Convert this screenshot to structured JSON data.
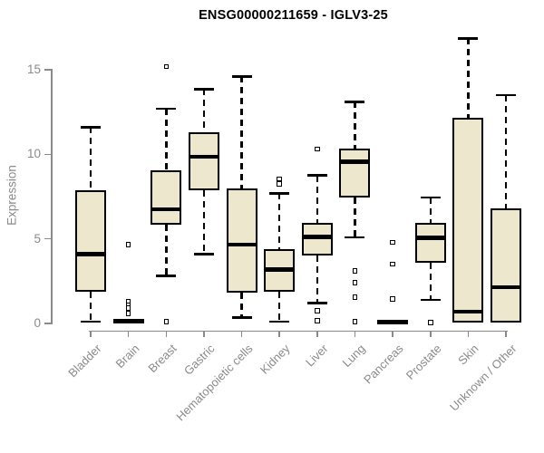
{
  "title": "ENSG00000211659 - IGLV3-25",
  "chart_data": {
    "type": "boxplot",
    "title": "ENSG00000211659 - IGLV3-25",
    "xlabel": "",
    "ylabel": "Expression",
    "ylim": [
      0,
      15
    ],
    "yticks": [
      0,
      5,
      10,
      15
    ],
    "grid": "off",
    "legend": "none",
    "categories": [
      "Bladder",
      "Brain",
      "Breast",
      "Gastric",
      "Hematopoietic cells",
      "Kidney",
      "Liver",
      "Lung",
      "Pancreas",
      "Prostate",
      "Skin",
      "Unknown / Other"
    ],
    "boxes": [
      {
        "label": "Bladder",
        "whisker_low": 0.1,
        "q1": 1.9,
        "median": 4.1,
        "q3": 7.9,
        "whisker_high": 11.6,
        "outliers": []
      },
      {
        "label": "Brain",
        "whisker_low": 0.0,
        "q1": 0.0,
        "median": 0.1,
        "q3": 0.25,
        "whisker_high": 0.25,
        "outliers": [
          4.65,
          1.3,
          1.1,
          0.9,
          0.6
        ]
      },
      {
        "label": "Breast",
        "whisker_low": 2.8,
        "q1": 5.85,
        "median": 6.75,
        "q3": 9.05,
        "whisker_high": 12.7,
        "outliers": [
          15.2,
          0.1
        ]
      },
      {
        "label": "Gastric",
        "whisker_low": 4.1,
        "q1": 7.85,
        "median": 9.85,
        "q3": 11.3,
        "whisker_high": 13.85,
        "outliers": []
      },
      {
        "label": "Hematopoietic cells",
        "whisker_low": 0.35,
        "q1": 1.8,
        "median": 4.65,
        "q3": 8.0,
        "whisker_high": 14.6,
        "outliers": []
      },
      {
        "label": "Kidney",
        "whisker_low": 0.1,
        "q1": 1.9,
        "median": 3.2,
        "q3": 4.4,
        "whisker_high": 7.7,
        "outliers": [
          8.55,
          8.25
        ]
      },
      {
        "label": "Liver",
        "whisker_low": 1.2,
        "q1": 4.0,
        "median": 5.1,
        "q3": 5.95,
        "whisker_high": 8.75,
        "outliers": [
          10.3,
          0.75,
          0.15
        ]
      },
      {
        "label": "Lung",
        "whisker_low": 5.1,
        "q1": 7.45,
        "median": 9.55,
        "q3": 10.35,
        "whisker_high": 13.1,
        "outliers": [
          3.1,
          2.4,
          1.55,
          0.1
        ]
      },
      {
        "label": "Pancreas",
        "whisker_low": 0.0,
        "q1": 0.0,
        "median": 0.1,
        "q3": 0.2,
        "whisker_high": 0.2,
        "outliers": [
          4.8,
          3.5,
          1.45
        ]
      },
      {
        "label": "Prostate",
        "whisker_low": 1.4,
        "q1": 3.6,
        "median": 5.05,
        "q3": 5.95,
        "whisker_high": 7.45,
        "outliers": [
          0.05
        ]
      },
      {
        "label": "Skin",
        "whisker_low": 0.05,
        "q1": 0.05,
        "median": 0.7,
        "q3": 12.15,
        "whisker_high": 16.85,
        "outliers": []
      },
      {
        "label": "Unknown / Other",
        "whisker_low": 0.05,
        "q1": 0.05,
        "median": 2.15,
        "q3": 6.8,
        "whisker_high": 13.5,
        "outliers": []
      }
    ],
    "colors": {
      "box_fill": "#EDE8CD",
      "box_border": "#000000",
      "median": "#000000",
      "whisker": "#000000",
      "axis": "#8a8a8a",
      "tick_text": "#8a8a8a",
      "title_text": "#000000",
      "background": "#ffffff"
    }
  }
}
